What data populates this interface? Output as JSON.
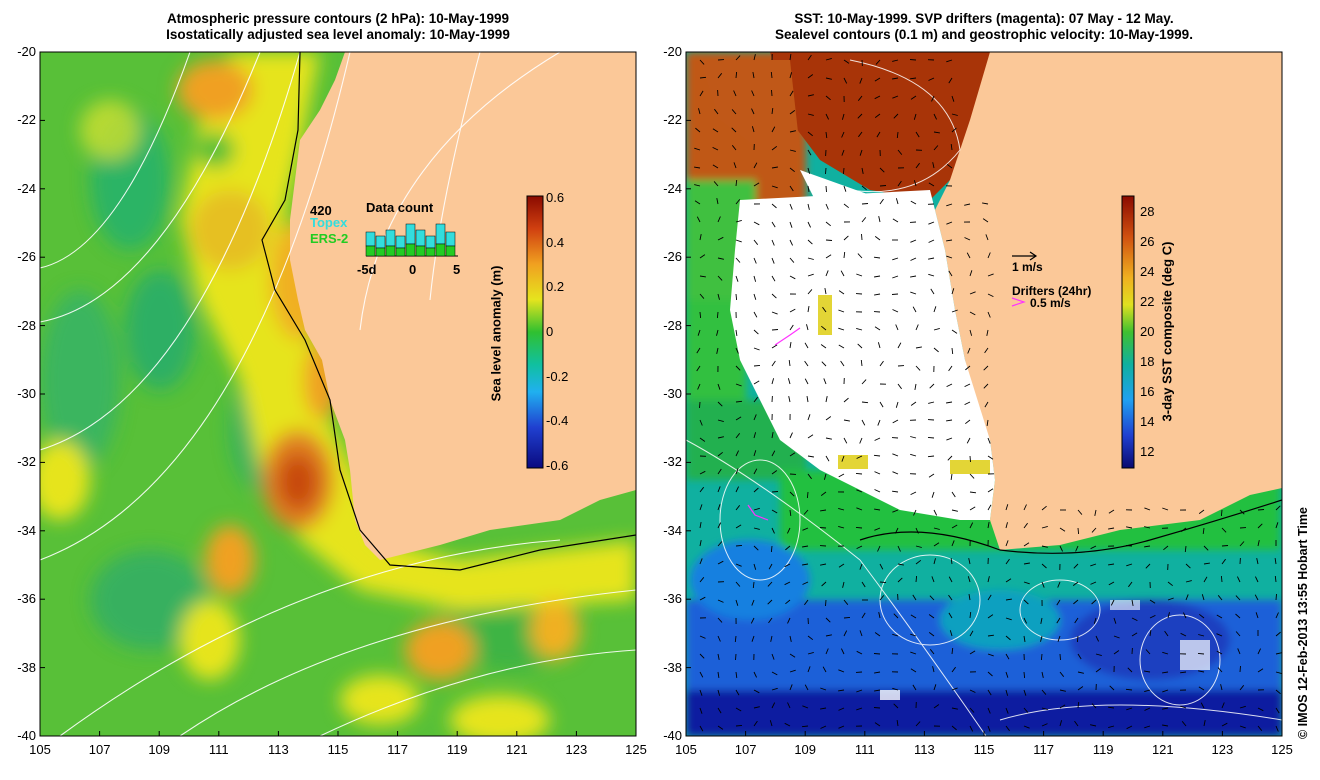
{
  "left_map": {
    "title_line1": "Atmospheric pressure contours (2 hPa): 10-May-1999",
    "title_line2": "Isostatically adjusted sea level anomaly: 10-May-1999",
    "colorbar": {
      "label": "Sea level anomaly (m)",
      "ticks": [
        "0.6",
        "0.4",
        "0.2",
        "0",
        "-0.2",
        "-0.4",
        "-0.6"
      ]
    },
    "inset": {
      "count_label": "420",
      "topex_label": "Topex",
      "ers_label": "ERS-2",
      "title": "Data count",
      "ticks": [
        "-5d",
        "0",
        "5"
      ],
      "topex_color": "#33dddd",
      "ers_color": "#22cc22"
    }
  },
  "right_map": {
    "title_line1": "SST: 10-May-1999. SVP drifters (magenta): 07 May - 12 May.",
    "title_line2": "Sealevel contours (0.1 m) and geostrophic velocity: 10-May-1999.",
    "scale_label": "1 m/s",
    "drifter_title": "Drifters (24hr)",
    "drifter_scale": "0.5 m/s",
    "colorbar": {
      "label": "3-day SST composite (deg C)",
      "ticks": [
        "28",
        "26",
        "24",
        "22",
        "20",
        "18",
        "16",
        "14",
        "12"
      ]
    }
  },
  "axes": {
    "y_ticks": [
      "-20",
      "-22",
      "-24",
      "-26",
      "-28",
      "-30",
      "-32",
      "-34",
      "-36",
      "-38",
      "-40"
    ],
    "x_ticks": [
      "105",
      "107",
      "109",
      "111",
      "113",
      "115",
      "117",
      "119",
      "121",
      "123",
      "125"
    ]
  },
  "credit": "© IMOS 12-Feb-2013 13:55 Hobart Time",
  "colors": {
    "land": "#fbc898",
    "ssh_green": "#58c038",
    "ssh_yellow": "#e6e41e",
    "ssh_orange": "#f0a020",
    "sst_blue": "#2060d8",
    "sst_teal": "#10b0a0",
    "sst_brown": "#b84010",
    "drifter": "#ff33ff"
  }
}
